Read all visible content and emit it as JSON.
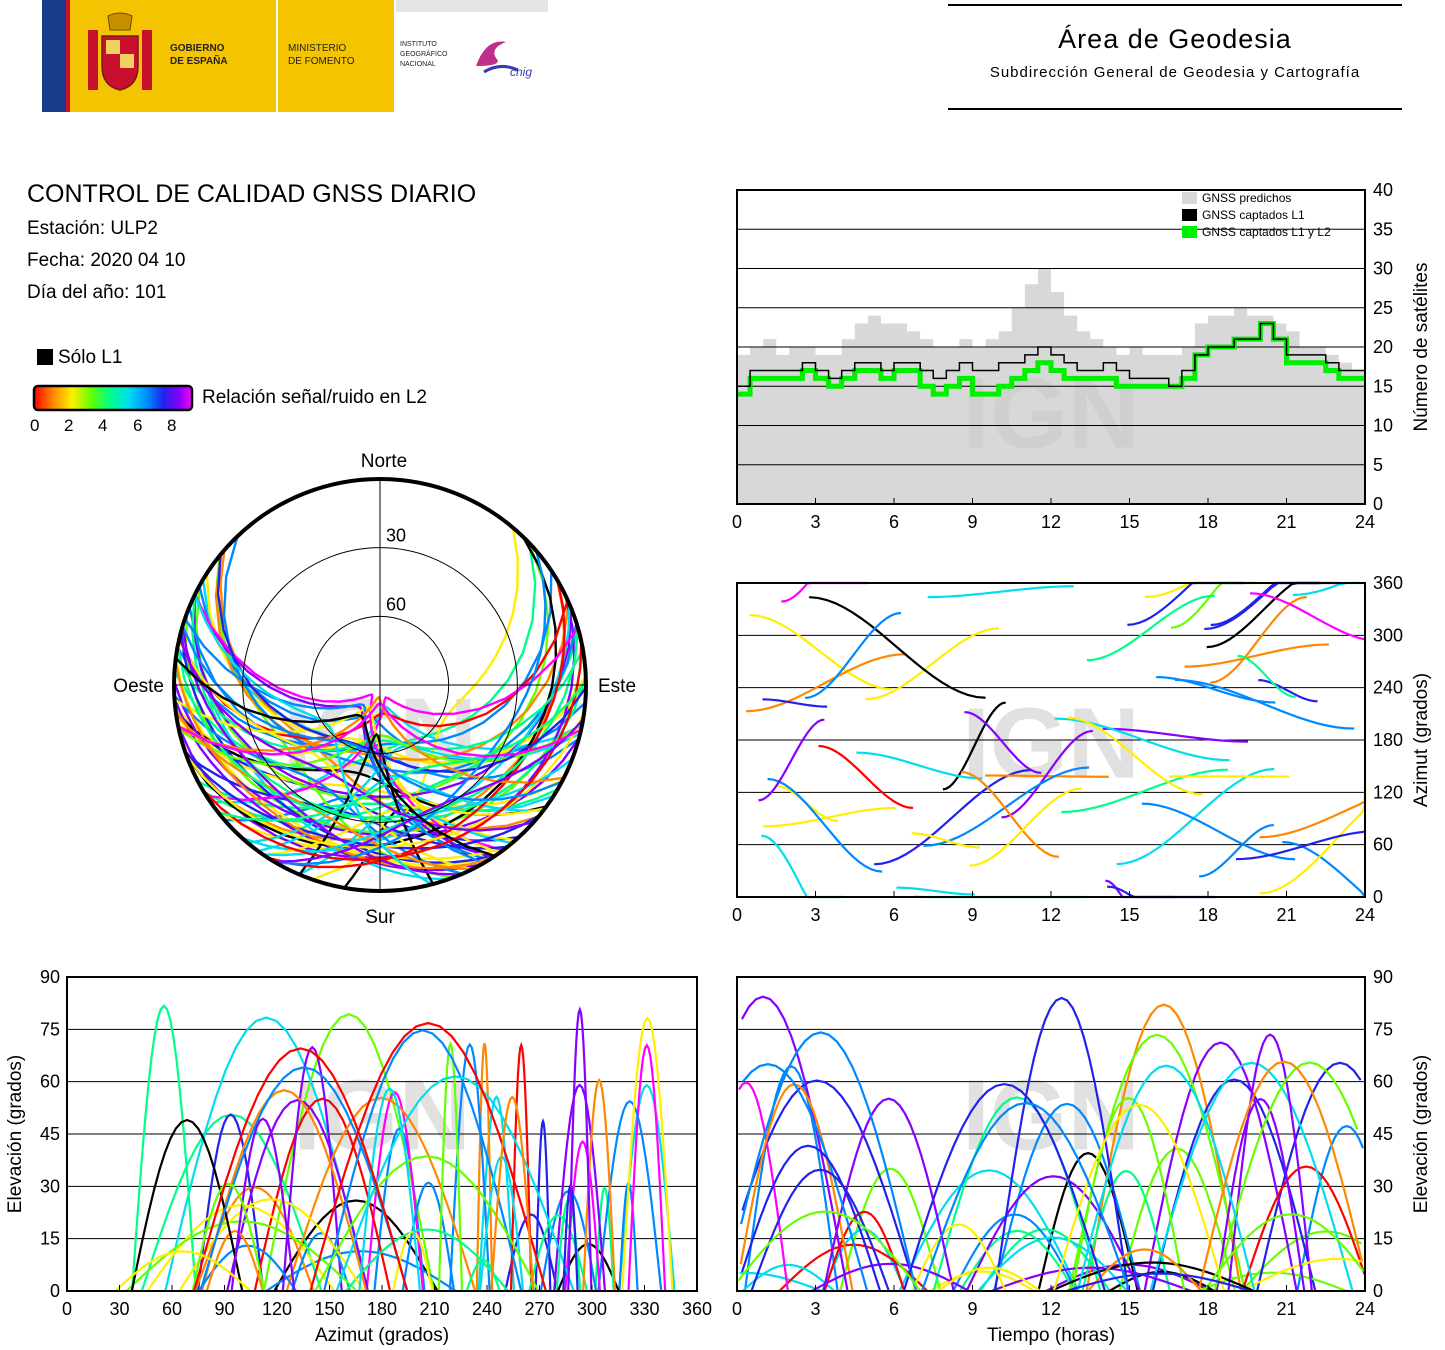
{
  "header": {
    "gov_line1": "GOBIERNO",
    "gov_line2": "DE ESPAÑA",
    "min_line1": "MINISTERIO",
    "min_line2": "DE FOMENTO",
    "ign_line1": "INSTITUTO",
    "ign_line2": "GEOGRÁFICO",
    "ign_line3": "NACIONAL",
    "cnig": "cnig",
    "area_title": "Área de Geodesia",
    "area_subtitle": "Subdirección General de Geodesia y Cartografía"
  },
  "report": {
    "title": "CONTROL DE CALIDAD GNSS DIARIO",
    "station": "Estación: ULP2",
    "date": "Fecha: 2020 04 10",
    "doy": "Día del año: 101"
  },
  "legend": {
    "solo_l1": "Sólo L1",
    "snr_label": "Relación señal/ruido en L2",
    "snr_ticks": [
      "0",
      "2",
      "4",
      "6",
      "8"
    ]
  },
  "watermark": "IGN",
  "colors": {
    "predicted": "#d8d8d8",
    "l1": "#000000",
    "l1l2": "#00ee00",
    "snr_scale": [
      "#ff0000",
      "#ff8800",
      "#ffee00",
      "#66ff00",
      "#00ff88",
      "#00ddee",
      "#0088ff",
      "#2222ee",
      "#8800ff",
      "#ff00ff"
    ]
  },
  "chart_data": [
    {
      "type": "area",
      "name": "satellites",
      "legend": [
        "GNSS predichos",
        "GNSS captados L1",
        "GNSS captados L1 y L2"
      ],
      "ylabel": "Número de satélites",
      "xlim": [
        0,
        24
      ],
      "ylim": [
        0,
        40
      ],
      "xticks": [
        "0",
        "3",
        "6",
        "9",
        "12",
        "15",
        "18",
        "21",
        "24"
      ],
      "yticks": [
        "0",
        "5",
        "10",
        "15",
        "20",
        "25",
        "30",
        "35",
        "40"
      ],
      "grid": true,
      "x": [
        0,
        0.5,
        1,
        1.5,
        2,
        2.5,
        3,
        3.5,
        4,
        4.5,
        5,
        5.5,
        6,
        6.5,
        7,
        7.5,
        8,
        8.5,
        9,
        9.5,
        10,
        10.5,
        11,
        11.5,
        12,
        12.5,
        13,
        13.5,
        14,
        14.5,
        15,
        15.5,
        16,
        16.5,
        17,
        17.5,
        18,
        18.5,
        19,
        19.5,
        20,
        20.5,
        21,
        21.5,
        22,
        22.5,
        23,
        23.5,
        24
      ],
      "predicted": [
        19,
        20,
        21,
        19,
        20,
        20,
        19,
        19,
        21,
        23,
        24,
        23,
        23,
        22,
        21,
        20,
        20,
        21,
        20,
        21,
        22,
        25,
        28,
        30,
        27,
        24,
        22,
        21,
        20,
        19,
        20,
        19,
        19,
        19,
        20,
        23,
        24,
        24,
        25,
        24,
        24,
        23,
        22,
        20,
        20,
        19,
        18,
        17,
        17
      ],
      "captured_l1": [
        15,
        17,
        17,
        17,
        17,
        18,
        17,
        16,
        17,
        18,
        18,
        17,
        18,
        18,
        17,
        16,
        17,
        18,
        17,
        17,
        18,
        18,
        19,
        20,
        19,
        18,
        17,
        17,
        18,
        17,
        16,
        16,
        16,
        15,
        17,
        19,
        20,
        20,
        21,
        21,
        23,
        21,
        19,
        19,
        19,
        18,
        17,
        17,
        16
      ],
      "captured_l1l2": [
        14,
        16,
        16,
        16,
        16,
        17,
        16,
        15,
        16,
        17,
        17,
        16,
        17,
        17,
        15,
        14,
        15,
        16,
        14,
        14,
        15,
        16,
        17,
        18,
        17,
        16,
        16,
        16,
        16,
        15,
        15,
        15,
        15,
        15,
        16,
        19,
        20,
        20,
        21,
        21,
        23,
        21,
        18,
        18,
        18,
        17,
        16,
        16,
        16
      ]
    },
    {
      "type": "polar-skyplot",
      "name": "skyplot",
      "directions": {
        "north": "Norte",
        "south": "Sur",
        "west": "Oeste",
        "east": "Este"
      },
      "rings": [
        "30",
        "60"
      ]
    },
    {
      "type": "scatter",
      "name": "azimuth-time",
      "xlim": [
        0,
        24
      ],
      "ylim": [
        0,
        360
      ],
      "ylabel": "Azimut (grados)",
      "xticks": [
        "0",
        "3",
        "6",
        "9",
        "12",
        "15",
        "18",
        "21",
        "24"
      ],
      "yticks": [
        "0",
        "60",
        "120",
        "180",
        "240",
        "300",
        "360"
      ]
    },
    {
      "type": "scatter",
      "name": "elevation-azimuth",
      "xlim": [
        0,
        360
      ],
      "ylim": [
        0,
        90
      ],
      "xlabel": "Azimut (grados)",
      "ylabel": "Elevación (grados)",
      "xticks": [
        "0",
        "30",
        "60",
        "90",
        "120",
        "150",
        "180",
        "210",
        "240",
        "270",
        "300",
        "330",
        "360"
      ],
      "yticks": [
        "0",
        "15",
        "30",
        "45",
        "60",
        "75",
        "90"
      ]
    },
    {
      "type": "scatter",
      "name": "elevation-time",
      "xlim": [
        0,
        24
      ],
      "ylim": [
        0,
        90
      ],
      "xlabel": "Tiempo (horas)",
      "ylabel": "Elevación (grados)",
      "xticks": [
        "0",
        "3",
        "6",
        "9",
        "12",
        "15",
        "18",
        "21",
        "24"
      ],
      "yticks": [
        "0",
        "15",
        "30",
        "45",
        "60",
        "75",
        "90"
      ]
    }
  ]
}
